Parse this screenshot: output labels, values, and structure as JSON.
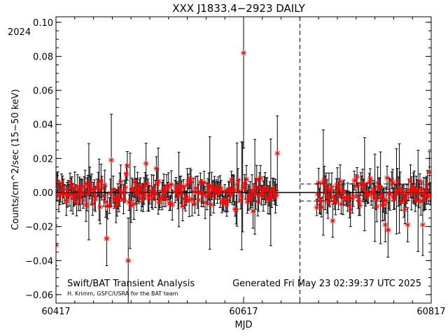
{
  "chart_data": {
    "type": "scatter",
    "title": "XXX J1833.4−2923 DAILY",
    "year_label": "2024",
    "xlabel": "MJD",
    "ylabel": "Counts/cm^2/sec (15−50 keV)",
    "xlim": [
      60417,
      60817
    ],
    "ylim": [
      -0.065,
      0.105
    ],
    "xticks": [
      60417,
      60617,
      60817
    ],
    "yticks": [
      -0.06,
      -0.04,
      -0.02,
      0.0,
      0.02,
      0.04,
      0.06,
      0.08,
      0.1
    ],
    "ytick_labels": [
      "−0.06",
      "−0.04",
      "−0.02",
      "0.00",
      "0.02",
      "0.04",
      "0.06",
      "0.08",
      "0.10"
    ],
    "vertical_dashed_line_x": 60677,
    "horizontal_dashed_levels": [
      0.005,
      -0.005
    ],
    "horizontal_dashed_x_range": [
      60677,
      60817
    ],
    "zero_line": 0.0,
    "marker_color": "#ff0000",
    "gap_in_coverage": [
      60653,
      60695
    ],
    "notable_points": [
      {
        "x": 60417,
        "y": -0.031,
        "err": 0.012
      },
      {
        "x": 60476,
        "y": 0.019,
        "err": 0.027
      },
      {
        "x": 60471,
        "y": -0.027,
        "err": 0.016
      },
      {
        "x": 60494,
        "y": -0.04,
        "err": 0.025
      },
      {
        "x": 60513,
        "y": 0.017,
        "err": 0.012
      },
      {
        "x": 60617,
        "y": 0.082,
        "err": 0.056
      },
      {
        "x": 60653,
        "y": 0.023,
        "err": 0.022
      },
      {
        "x": 60627,
        "y": -0.011,
        "err": 0.01
      },
      {
        "x": 60731,
        "y": -0.01,
        "err": 0.01
      },
      {
        "x": 60768,
        "y": -0.019,
        "err": 0.01
      },
      {
        "x": 60771,
        "y": -0.022,
        "err": 0.016
      },
      {
        "x": 60792,
        "y": -0.019,
        "err": 0.01
      },
      {
        "x": 60808,
        "y": -0.019,
        "err": 0.018
      },
      {
        "x": 60815,
        "y": 0.012,
        "err": 0.012
      }
    ]
  },
  "footer": {
    "left_title": "Swift/BAT Transient Analysis",
    "credit": "H. Krimm, GSFC/USRA for the BAT team",
    "generated": "Generated Fri May 23 02:39:37 UTC 2025"
  }
}
